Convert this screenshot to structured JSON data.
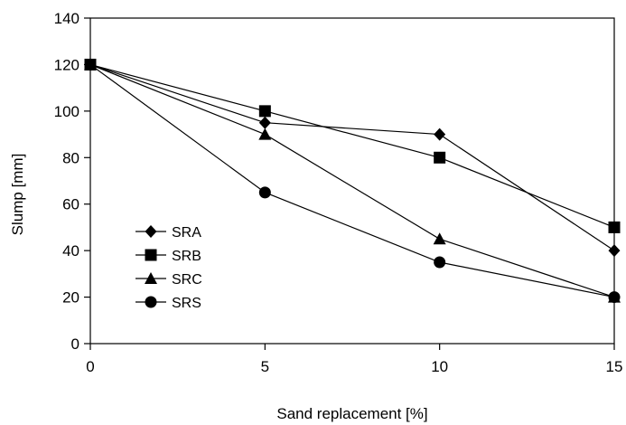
{
  "chart_data": {
    "type": "line",
    "title": "",
    "xlabel": "Sand replacement [%]",
    "ylabel": "Slump [mm]",
    "x": [
      0,
      5,
      10,
      15
    ],
    "xlim": [
      0,
      15
    ],
    "ylim": [
      0,
      140
    ],
    "xticks": [
      0,
      5,
      10,
      15
    ],
    "yticks": [
      0,
      20,
      40,
      60,
      80,
      100,
      120,
      140
    ],
    "grid": false,
    "legend_position": "bottom-left",
    "colors": {
      "line": "#000000",
      "marker": "#000000",
      "frame": "#000000"
    },
    "series": [
      {
        "name": "SRA",
        "marker": "diamond",
        "values": [
          120,
          95,
          90,
          40
        ]
      },
      {
        "name": "SRB",
        "marker": "square",
        "values": [
          120,
          100,
          80,
          50
        ]
      },
      {
        "name": "SRC",
        "marker": "triangle",
        "values": [
          120,
          90,
          45,
          20
        ]
      },
      {
        "name": "SRS",
        "marker": "circle",
        "values": [
          120,
          65,
          35,
          20
        ]
      }
    ]
  }
}
